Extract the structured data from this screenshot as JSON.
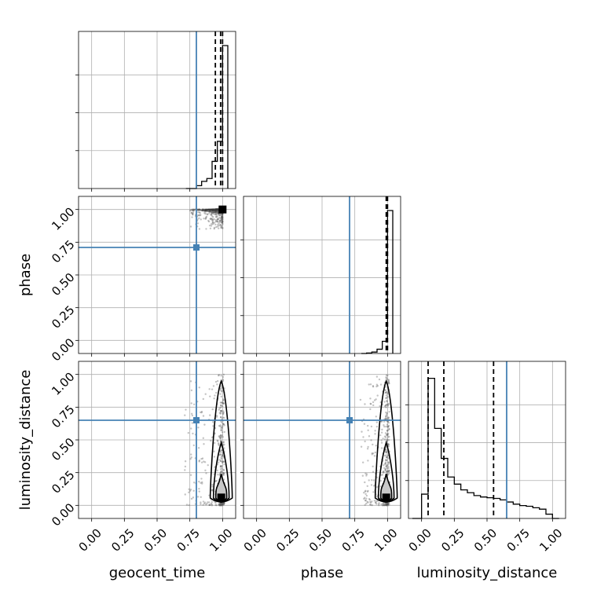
{
  "chart_data": {
    "type": "corner",
    "parameters": [
      "geocent_time",
      "phase",
      "luminosity_distance"
    ],
    "axis_labels": {
      "x": [
        "geocent_time",
        "phase",
        "luminosity_distance"
      ],
      "y": [
        "",
        "phase",
        "luminosity_distance"
      ]
    },
    "tick_values": [
      0.0,
      0.25,
      0.5,
      0.75,
      1.0
    ],
    "tick_labels": [
      "0.00",
      "0.25",
      "0.50",
      "0.75",
      "1.00"
    ],
    "axis_range": [
      -0.1,
      1.1
    ],
    "truths": {
      "geocent_time": 0.8,
      "phase": 0.71,
      "luminosity_distance": 0.65
    },
    "truth_color": "#4682b4",
    "grid": true,
    "histograms": [
      {
        "parameter": "geocent_time",
        "bin_edges": [
          0.72,
          0.76,
          0.8,
          0.84,
          0.88,
          0.92,
          0.96,
          1.0,
          1.04
        ],
        "counts": [
          0,
          0,
          0.02,
          0.05,
          0.07,
          0.19,
          0.33,
          1.0
        ],
        "quantiles": [
          0.945,
          0.985,
          1.0
        ]
      },
      {
        "parameter": "phase",
        "bin_edges": [
          0.8,
          0.84,
          0.88,
          0.92,
          0.96,
          1.0,
          1.04
        ],
        "counts": [
          0,
          0.003,
          0.01,
          0.03,
          0.085,
          1.0
        ],
        "quantiles": [
          0.99,
          0.997,
          1.0
        ]
      },
      {
        "parameter": "luminosity_distance",
        "bin_edges": [
          -0.07,
          0.0,
          0.05,
          0.1,
          0.15,
          0.2,
          0.25,
          0.3,
          0.35,
          0.4,
          0.45,
          0.5,
          0.55,
          0.6,
          0.65,
          0.7,
          0.75,
          0.8,
          0.85,
          0.9,
          0.95,
          1.0,
          1.05
        ],
        "counts": [
          0.0,
          0.17,
          0.98,
          0.63,
          0.42,
          0.29,
          0.24,
          0.2,
          0.18,
          0.16,
          0.15,
          0.145,
          0.14,
          0.13,
          0.115,
          0.1,
          0.09,
          0.085,
          0.075,
          0.065,
          0.03,
          0.0
        ],
        "quantiles": [
          0.05,
          0.17,
          0.55
        ]
      }
    ],
    "scatter_panels": [
      {
        "x_param": "geocent_time",
        "y_param": "phase",
        "density_peak": [
          1.0,
          1.0
        ],
        "x_spread": [
          0.75,
          1.0
        ],
        "y_spread": [
          0.85,
          1.0
        ]
      },
      {
        "x_param": "geocent_time",
        "y_param": "luminosity_distance",
        "density_peak": [
          1.0,
          0.06
        ],
        "x_spread": [
          0.7,
          1.02
        ],
        "y_spread": [
          0.0,
          1.0
        ]
      },
      {
        "x_param": "phase",
        "y_param": "luminosity_distance",
        "density_peak": [
          1.0,
          0.06
        ],
        "x_spread": [
          0.8,
          1.01
        ],
        "y_spread": [
          0.0,
          1.0
        ]
      }
    ]
  }
}
